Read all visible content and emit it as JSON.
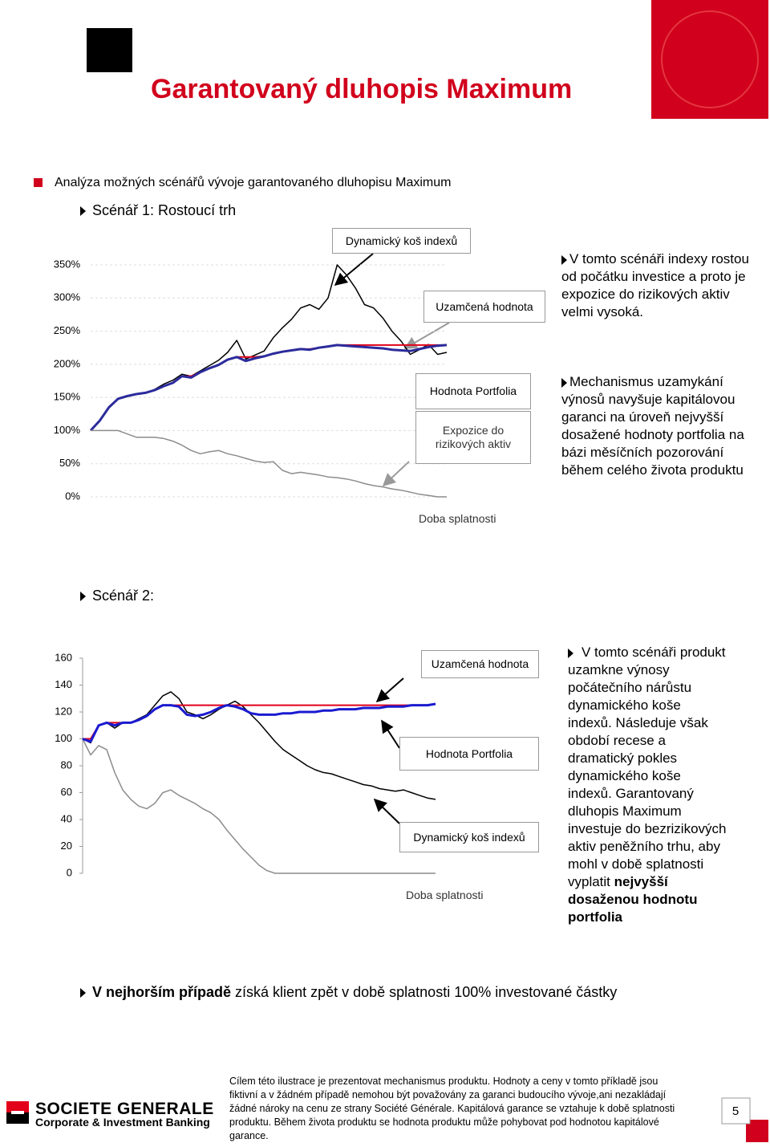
{
  "header": {
    "title": "Garantovaný dluhopis Maximum"
  },
  "intro": "Analýza možných scénářů vývoje garantovaného dluhopisu Maximum",
  "scenario1": {
    "heading": "Scénář 1: Rostoucí trh",
    "notes": [
      "V tomto scénáři indexy rostou od počátku investice a proto je expozice do rizikových aktiv velmi vysoká.",
      "Mechanismus uzamykání výnosů navyšuje kapitálovou garanci na úroveň nejvyšší dosažené hodnoty portfolia na bázi měsíčních pozorování během celého života produktu"
    ]
  },
  "scenario2": {
    "heading": "Scénář 2:",
    "note": {
      "text": "V tomto scénáři produkt uzamkne výnosy počátečního nárůstu dynamického koše indexů. Následuje však období recese a dramatický pokles dynamického koše indexů. Garantovaný dluhopis Maximum investuje do bezrizikových aktiv peněžního trhu, aby mohl v době splatnosti vyplatit ",
      "bold": "nejvyšší dosaženou hodnotu portfolia"
    }
  },
  "conclusion": {
    "bold": "V nejhorším případě",
    "text": " získá klient zpět v době splatnosti 100% investované částky"
  },
  "footer": {
    "disclaimer": "Cílem této ilustrace je prezentovat mechanismus produktu. Hodnoty a ceny v tomto příkladě jsou fiktivní a v žádném případě nemohou být považovány za garanci budoucího vývoje,ani nezakládají žádné nároky na cenu ze strany Société Générale. Kapitálová garance se vztahuje k době splatnosti produktu. Během života produktu se hodnota produktu může pohybovat pod hodnotou kapitálové garance.",
    "brand": "SOCIETE GENERALE",
    "division": "Corporate & Investment Banking",
    "page": "5"
  },
  "chart_data": [
    {
      "type": "line",
      "x_label": "Doba splatnosti",
      "ylim": [
        0,
        350
      ],
      "grid": true,
      "yticks": [
        {
          "value": 0,
          "label": "0%"
        },
        {
          "value": 50,
          "label": "50%"
        },
        {
          "value": 100,
          "label": "100%"
        },
        {
          "value": 150,
          "label": "150%"
        },
        {
          "value": 200,
          "label": "200%"
        },
        {
          "value": 250,
          "label": "250%"
        },
        {
          "value": 300,
          "label": "300%"
        },
        {
          "value": 350,
          "label": "350%"
        }
      ],
      "series": [
        {
          "name": "Dynamický koš indexů",
          "color": "#000000",
          "line_width": 1.5,
          "values": [
            100,
            115,
            135,
            148,
            152,
            155,
            157,
            162,
            170,
            176,
            185,
            182,
            190,
            198,
            206,
            218,
            236,
            208,
            214,
            220,
            240,
            255,
            268,
            285,
            290,
            283,
            300,
            350,
            335,
            315,
            290,
            285,
            270,
            250,
            235,
            215,
            222,
            230,
            215,
            218
          ]
        },
        {
          "name": "Uzamčená hodnota",
          "color": "#e2001a",
          "line_width": 2,
          "values": [
            100,
            115,
            135,
            148,
            152,
            155,
            157,
            161,
            167,
            172,
            182,
            182,
            188,
            194,
            199,
            207,
            211,
            211,
            211,
            212,
            216,
            219,
            221,
            223,
            223,
            225,
            227,
            229,
            229,
            229,
            229,
            229,
            229,
            229,
            229,
            229,
            229,
            229,
            229,
            229
          ]
        },
        {
          "name": "Hodnota Portfolia",
          "color": "#2b2b9c",
          "line_width": 3,
          "values": [
            100,
            115,
            135,
            148,
            152,
            155,
            157,
            161,
            167,
            172,
            182,
            180,
            188,
            194,
            199,
            207,
            211,
            205,
            209,
            212,
            216,
            219,
            221,
            223,
            222,
            225,
            227,
            229,
            228,
            227,
            226,
            225,
            224,
            222,
            221,
            220,
            223,
            226,
            228,
            229
          ]
        },
        {
          "name": "Expozice do rizikových aktiv",
          "color": "#8c8c8c",
          "line_width": 1.5,
          "values": [
            100,
            100,
            100,
            100,
            95,
            90,
            90,
            90,
            88,
            84,
            78,
            70,
            65,
            68,
            70,
            65,
            62,
            58,
            54,
            52,
            53,
            40,
            35,
            37,
            35,
            33,
            30,
            29,
            27,
            24,
            20,
            17,
            15,
            12,
            10,
            7,
            4,
            2,
            0,
            0
          ]
        }
      ]
    },
    {
      "type": "line",
      "x_label": "Doba splatnosti",
      "ylim": [
        0,
        160
      ],
      "grid": false,
      "yticks": [
        0,
        20,
        40,
        60,
        80,
        100,
        120,
        140,
        160
      ],
      "series": [
        {
          "color": "#8c8c8c",
          "line_width": 1.5,
          "values": [
            100,
            88,
            95,
            92,
            75,
            62,
            55,
            50,
            48,
            52,
            60,
            62,
            58,
            55,
            52,
            48,
            45,
            40,
            32,
            25,
            18,
            12,
            6,
            2,
            0,
            0,
            0,
            0,
            0,
            0,
            0,
            0,
            0,
            0,
            0,
            0,
            0,
            0,
            0,
            0,
            0,
            0,
            0,
            0,
            0
          ]
        },
        {
          "name": "Dynamický koš indexů",
          "color": "#000000",
          "line_width": 1.5,
          "values": [
            100,
            97,
            110,
            112,
            108,
            112,
            112,
            115,
            118,
            125,
            132,
            135,
            130,
            120,
            118,
            115,
            118,
            122,
            125,
            128,
            124,
            118,
            112,
            105,
            98,
            92,
            88,
            84,
            80,
            77,
            75,
            74,
            72,
            70,
            68,
            66,
            65,
            63,
            62,
            61,
            62,
            60,
            58,
            56,
            55
          ]
        },
        {
          "name": "Uzamčená hodnota",
          "color": "#e2001a",
          "line_width": 2,
          "values": [
            100,
            100,
            110,
            112,
            112,
            112,
            112,
            114,
            117,
            122,
            125,
            125,
            125,
            125,
            125,
            125,
            125,
            125,
            125,
            125,
            125,
            125,
            125,
            125,
            125,
            125,
            125,
            125,
            125,
            125,
            125,
            125,
            125,
            125,
            125,
            125,
            125,
            125,
            125,
            125,
            125,
            125,
            125,
            125,
            126
          ]
        },
        {
          "name": "Hodnota Portfolia",
          "color": "#1a1ad0",
          "line_width": 3,
          "values": [
            100,
            98,
            110,
            112,
            110,
            112,
            112,
            114,
            117,
            122,
            125,
            125,
            124,
            118,
            117,
            118,
            120,
            123,
            125,
            124,
            122,
            119,
            118,
            118,
            118,
            119,
            119,
            120,
            120,
            120,
            121,
            121,
            122,
            122,
            122,
            123,
            123,
            123,
            124,
            124,
            124,
            125,
            125,
            125,
            126
          ]
        }
      ]
    }
  ]
}
